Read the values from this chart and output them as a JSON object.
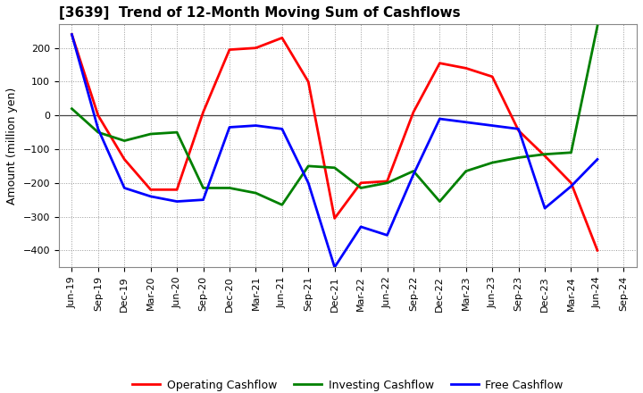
{
  "title": "[3639]  Trend of 12-Month Moving Sum of Cashflows",
  "ylabel": "Amount (million yen)",
  "x_labels": [
    "Jun-19",
    "Sep-19",
    "Dec-19",
    "Mar-20",
    "Jun-20",
    "Sep-20",
    "Dec-20",
    "Mar-21",
    "Jun-21",
    "Sep-21",
    "Dec-21",
    "Mar-22",
    "Jun-22",
    "Sep-22",
    "Dec-22",
    "Mar-23",
    "Jun-23",
    "Sep-23",
    "Dec-23",
    "Mar-24",
    "Jun-24",
    "Sep-24"
  ],
  "operating_cashflow": [
    240,
    0,
    -130,
    -220,
    -220,
    10,
    195,
    200,
    230,
    100,
    -305,
    -200,
    -195,
    10,
    155,
    140,
    115,
    -45,
    -120,
    -200,
    -400,
    null
  ],
  "investing_cashflow": [
    20,
    -50,
    -75,
    -55,
    -50,
    -215,
    -215,
    -230,
    -265,
    -150,
    -155,
    -215,
    -200,
    -165,
    -255,
    -165,
    -140,
    -125,
    -115,
    -110,
    265,
    null
  ],
  "free_cashflow": [
    240,
    -40,
    -215,
    -240,
    -255,
    -250,
    -35,
    -30,
    -40,
    -200,
    -450,
    -330,
    -355,
    -175,
    -10,
    -20,
    -30,
    -40,
    -275,
    -210,
    -130,
    null
  ],
  "operating_color": "#ff0000",
  "investing_color": "#008000",
  "free_color": "#0000ff",
  "ylim": [
    -450,
    270
  ],
  "yticks": [
    -400,
    -300,
    -200,
    -100,
    0,
    100,
    200
  ],
  "background_color": "#ffffff",
  "grid_color": "#999999",
  "linewidth": 2.0,
  "title_fontsize": 11,
  "ylabel_fontsize": 9,
  "tick_fontsize": 8,
  "legend_fontsize": 9
}
